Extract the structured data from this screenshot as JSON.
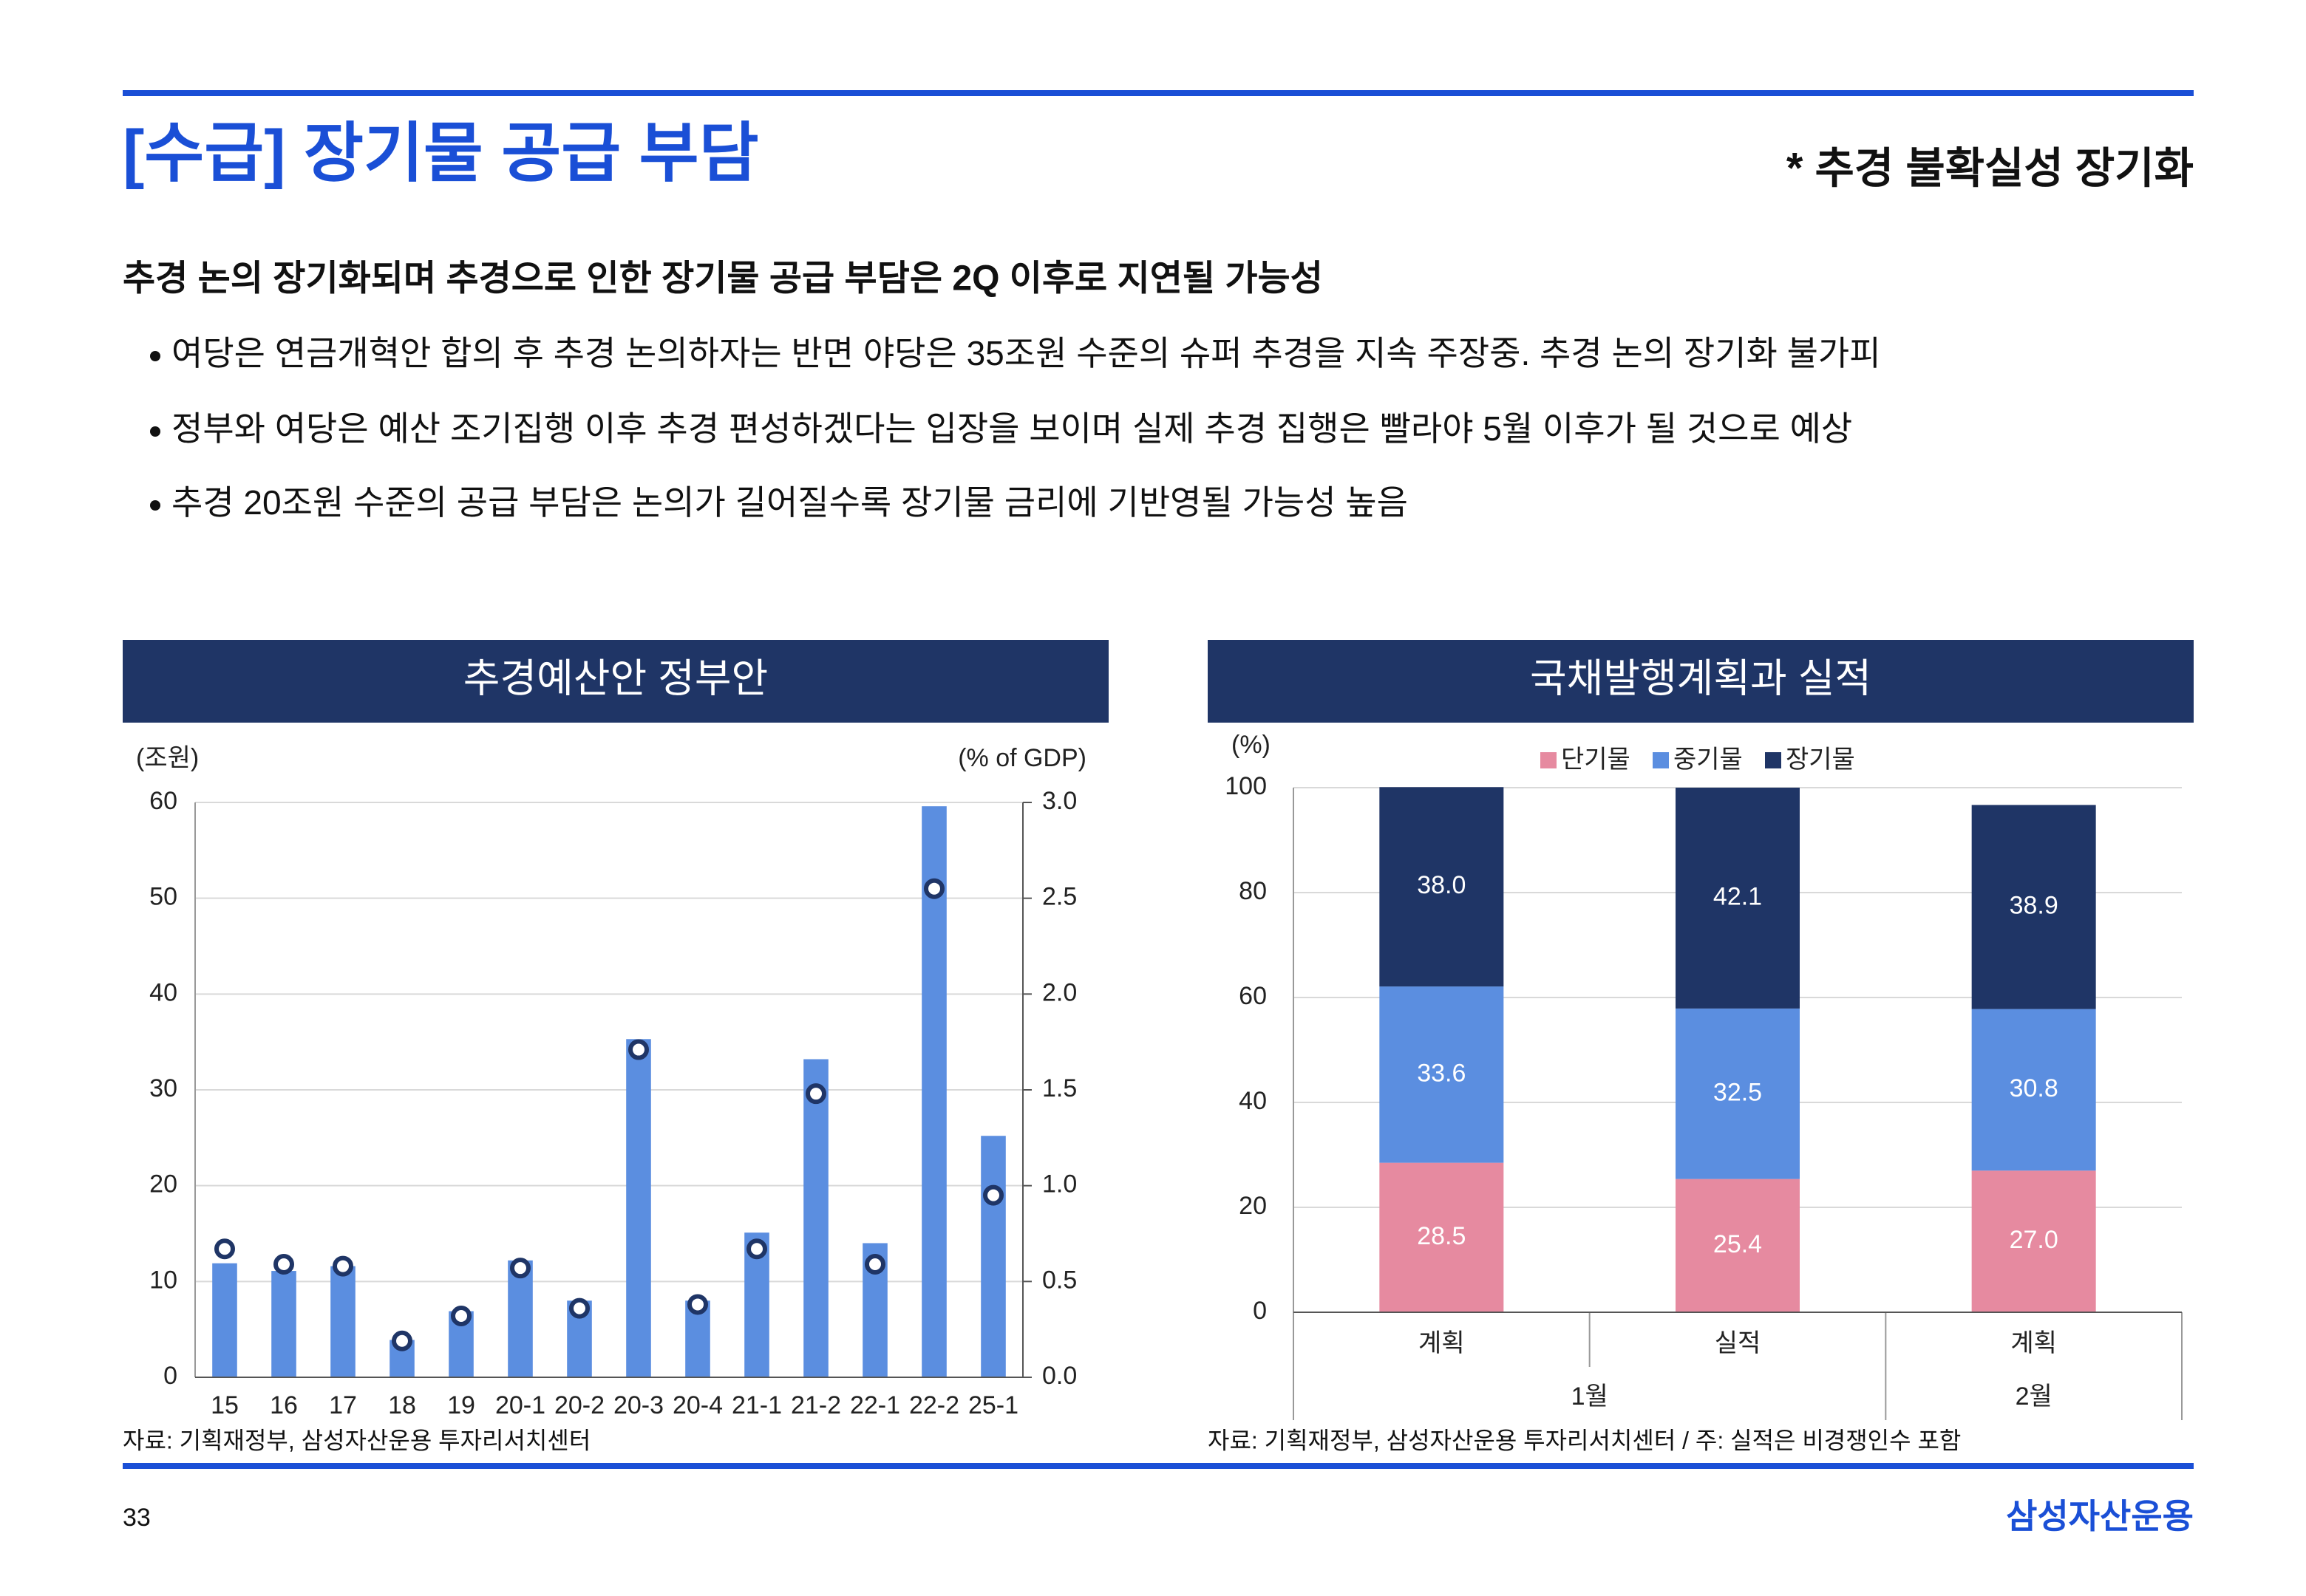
{
  "header": {
    "title": "[수급] 장기물 공급 부담",
    "subtitle": "* 추경 불확실성 장기화"
  },
  "body": {
    "heading": "추경 논의 장기화되며 추경으로 인한 장기물 공급 부담은 2Q 이후로 지연될 가능성",
    "bullets": [
      "여당은 연금개혁안 합의 후 추경 논의하자는 반면 야당은 35조원 수준의 슈퍼 추경을 지속 주장중. 추경 논의 장기화 불가피",
      "정부와 여당은 예산 조기집행 이후 추경 편성하겠다는 입장을 보이며 실제 추경 집행은 빨라야 5월 이후가 될 것으로 예상",
      "추경 20조원 수준의 공급 부담은 논의가 길어질수록 장기물 금리에 기반영될 가능성 높음"
    ]
  },
  "chart_data": [
    {
      "type": "bar",
      "title": "추경예산안 정부안",
      "ylabel": "(조원)",
      "y2label": "(% of GDP)",
      "source": "자료: 기획재정부, 삼성자산운용 투자리서치센터",
      "categories": [
        "15",
        "16",
        "17",
        "18",
        "19",
        "20-1",
        "20-2",
        "20-3",
        "20-4",
        "21-1",
        "21-2",
        "22-1",
        "22-2",
        "25-1"
      ],
      "series": [
        {
          "type": "bar",
          "color": "#5b8ee0",
          "values": [
            11.9,
            11.1,
            11.6,
            3.9,
            6.9,
            12.2,
            8.0,
            35.3,
            8.0,
            15.1,
            33.2,
            14.0,
            59.6,
            25.2
          ]
        },
        {
          "type": "marker",
          "axis": "y2",
          "color": "#1f3566",
          "values": [
            0.67,
            0.59,
            0.58,
            0.19,
            0.32,
            0.57,
            0.36,
            1.71,
            0.38,
            0.67,
            1.48,
            0.59,
            2.55,
            0.95
          ]
        }
      ],
      "ylim": [
        0,
        60
      ],
      "yticks": [
        0,
        10,
        20,
        30,
        40,
        50,
        60
      ],
      "y2lim": [
        0,
        3
      ],
      "y2ticks": [
        {
          "value": 0,
          "label": "0.0"
        },
        {
          "value": 0.5,
          "label": "0.5"
        },
        {
          "value": 1,
          "label": "1.0"
        },
        {
          "value": 1.5,
          "label": "1.5"
        },
        {
          "value": 2,
          "label": "2.0"
        },
        {
          "value": 2.5,
          "label": "2.5"
        },
        {
          "value": 3,
          "label": "3.0"
        }
      ],
      "grid": true
    },
    {
      "type": "stacked_bar",
      "title": "국채발행계획과 실적",
      "ylabel": "(%)",
      "source": "자료: 기획재정부, 삼성자산운용 투자리서치센터 / 주: 실적은 비경쟁인수 포함",
      "groups": [
        {
          "label": "1월",
          "categories": [
            "계획",
            "실적"
          ]
        },
        {
          "label": "2월",
          "categories": [
            "계획"
          ]
        }
      ],
      "series": [
        {
          "name": "단기물",
          "color": "#e68aa0",
          "values": [
            28.5,
            25.4,
            27.0
          ],
          "value_labels": [
            "28.5",
            "25.4",
            "27.0"
          ]
        },
        {
          "name": "중기물",
          "color": "#5b8ee0",
          "values": [
            33.6,
            32.5,
            30.8
          ],
          "value_labels": [
            "33.6",
            "32.5",
            "30.8"
          ]
        },
        {
          "name": "장기물",
          "color": "#1f3566",
          "values": [
            38.0,
            42.1,
            38.9
          ],
          "value_labels": [
            "38.0",
            "42.1",
            "38.9"
          ]
        }
      ],
      "ylim": [
        0,
        100
      ],
      "yticks": [
        0,
        20,
        40,
        60,
        80,
        100
      ],
      "grid": true,
      "legend": "top"
    }
  ],
  "footer": {
    "page": "33",
    "logo": "삼성자산운용"
  }
}
